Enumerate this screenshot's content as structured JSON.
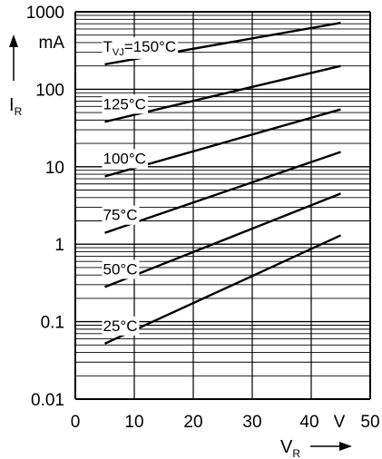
{
  "chart_data": {
    "type": "line",
    "xscale": "linear",
    "yscale": "log",
    "xlim": [
      0,
      50
    ],
    "ylim": [
      0.01,
      1000
    ],
    "grid": true,
    "x_ticks": [
      "0",
      "10",
      "20",
      "30",
      "40",
      "50"
    ],
    "x_unit_tick": "V",
    "y_ticks": [
      "1000",
      "100",
      "10",
      "1",
      "0.1",
      "0.01"
    ],
    "y_unit": "mA",
    "ylabel": {
      "main": "I",
      "sub": "R"
    },
    "xlabel": {
      "main": "V",
      "sub": "R"
    },
    "series": [
      {
        "name": "=150°C",
        "prefix": "T",
        "prefix_sub": "VJ",
        "x": [
          5,
          45
        ],
        "y": [
          210,
          720
        ]
      },
      {
        "name": "125°C",
        "x": [
          5,
          45
        ],
        "y": [
          38,
          200
        ]
      },
      {
        "name": "100°C",
        "x": [
          5,
          45
        ],
        "y": [
          7.5,
          55
        ]
      },
      {
        "name": "75°C",
        "x": [
          5,
          45
        ],
        "y": [
          1.4,
          15.5
        ]
      },
      {
        "name": "50°C",
        "x": [
          5,
          45
        ],
        "y": [
          0.28,
          4.5
        ]
      },
      {
        "name": "25°C",
        "x": [
          5,
          45
        ],
        "y": [
          0.052,
          1.3
        ]
      }
    ]
  }
}
